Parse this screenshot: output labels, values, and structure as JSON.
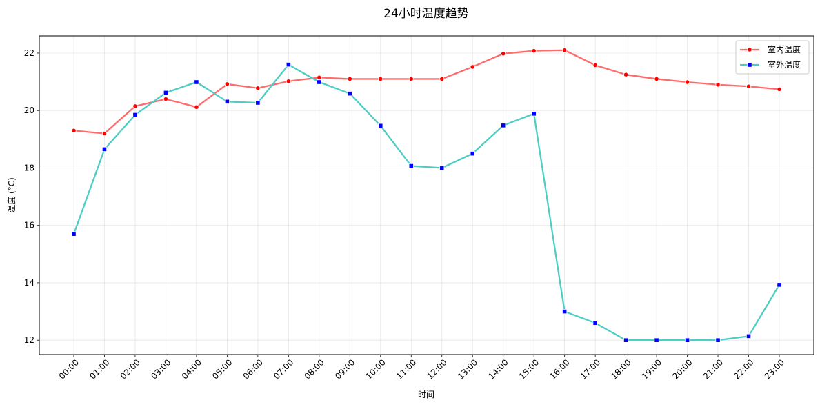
{
  "chart_data": {
    "type": "line",
    "title": "24小时温度趋势",
    "xlabel": "时间",
    "ylabel": "温度 (°C)",
    "categories": [
      "00:00",
      "01:00",
      "02:00",
      "03:00",
      "04:00",
      "05:00",
      "06:00",
      "07:00",
      "08:00",
      "09:00",
      "10:00",
      "11:00",
      "12:00",
      "13:00",
      "14:00",
      "15:00",
      "16:00",
      "17:00",
      "18:00",
      "19:00",
      "20:00",
      "21:00",
      "22:00",
      "23:00"
    ],
    "ylim": [
      11.5,
      22.6
    ],
    "yticks": [
      12,
      14,
      16,
      18,
      20,
      22
    ],
    "grid": true,
    "legend_position": "top-right",
    "series": [
      {
        "name": "室内温度",
        "color": "#ff6b6b",
        "marker_color": "#ff0000",
        "marker": "circle",
        "values": [
          19.3,
          19.2,
          20.15,
          20.4,
          20.12,
          20.92,
          20.78,
          21.02,
          21.15,
          21.1,
          21.1,
          21.1,
          21.1,
          21.52,
          21.98,
          22.08,
          22.1,
          21.58,
          21.25,
          21.1,
          20.99,
          20.9,
          20.84,
          20.74
        ]
      },
      {
        "name": "室外温度",
        "color": "#4ecdc4",
        "marker_color": "#0000ff",
        "marker": "square",
        "values": [
          15.7,
          18.65,
          19.85,
          20.62,
          20.99,
          20.31,
          20.27,
          21.6,
          20.99,
          20.59,
          19.47,
          18.07,
          18.0,
          18.5,
          19.48,
          19.89,
          13.0,
          12.6,
          12.0,
          12.0,
          12.0,
          12.0,
          12.14,
          13.93
        ]
      }
    ]
  }
}
